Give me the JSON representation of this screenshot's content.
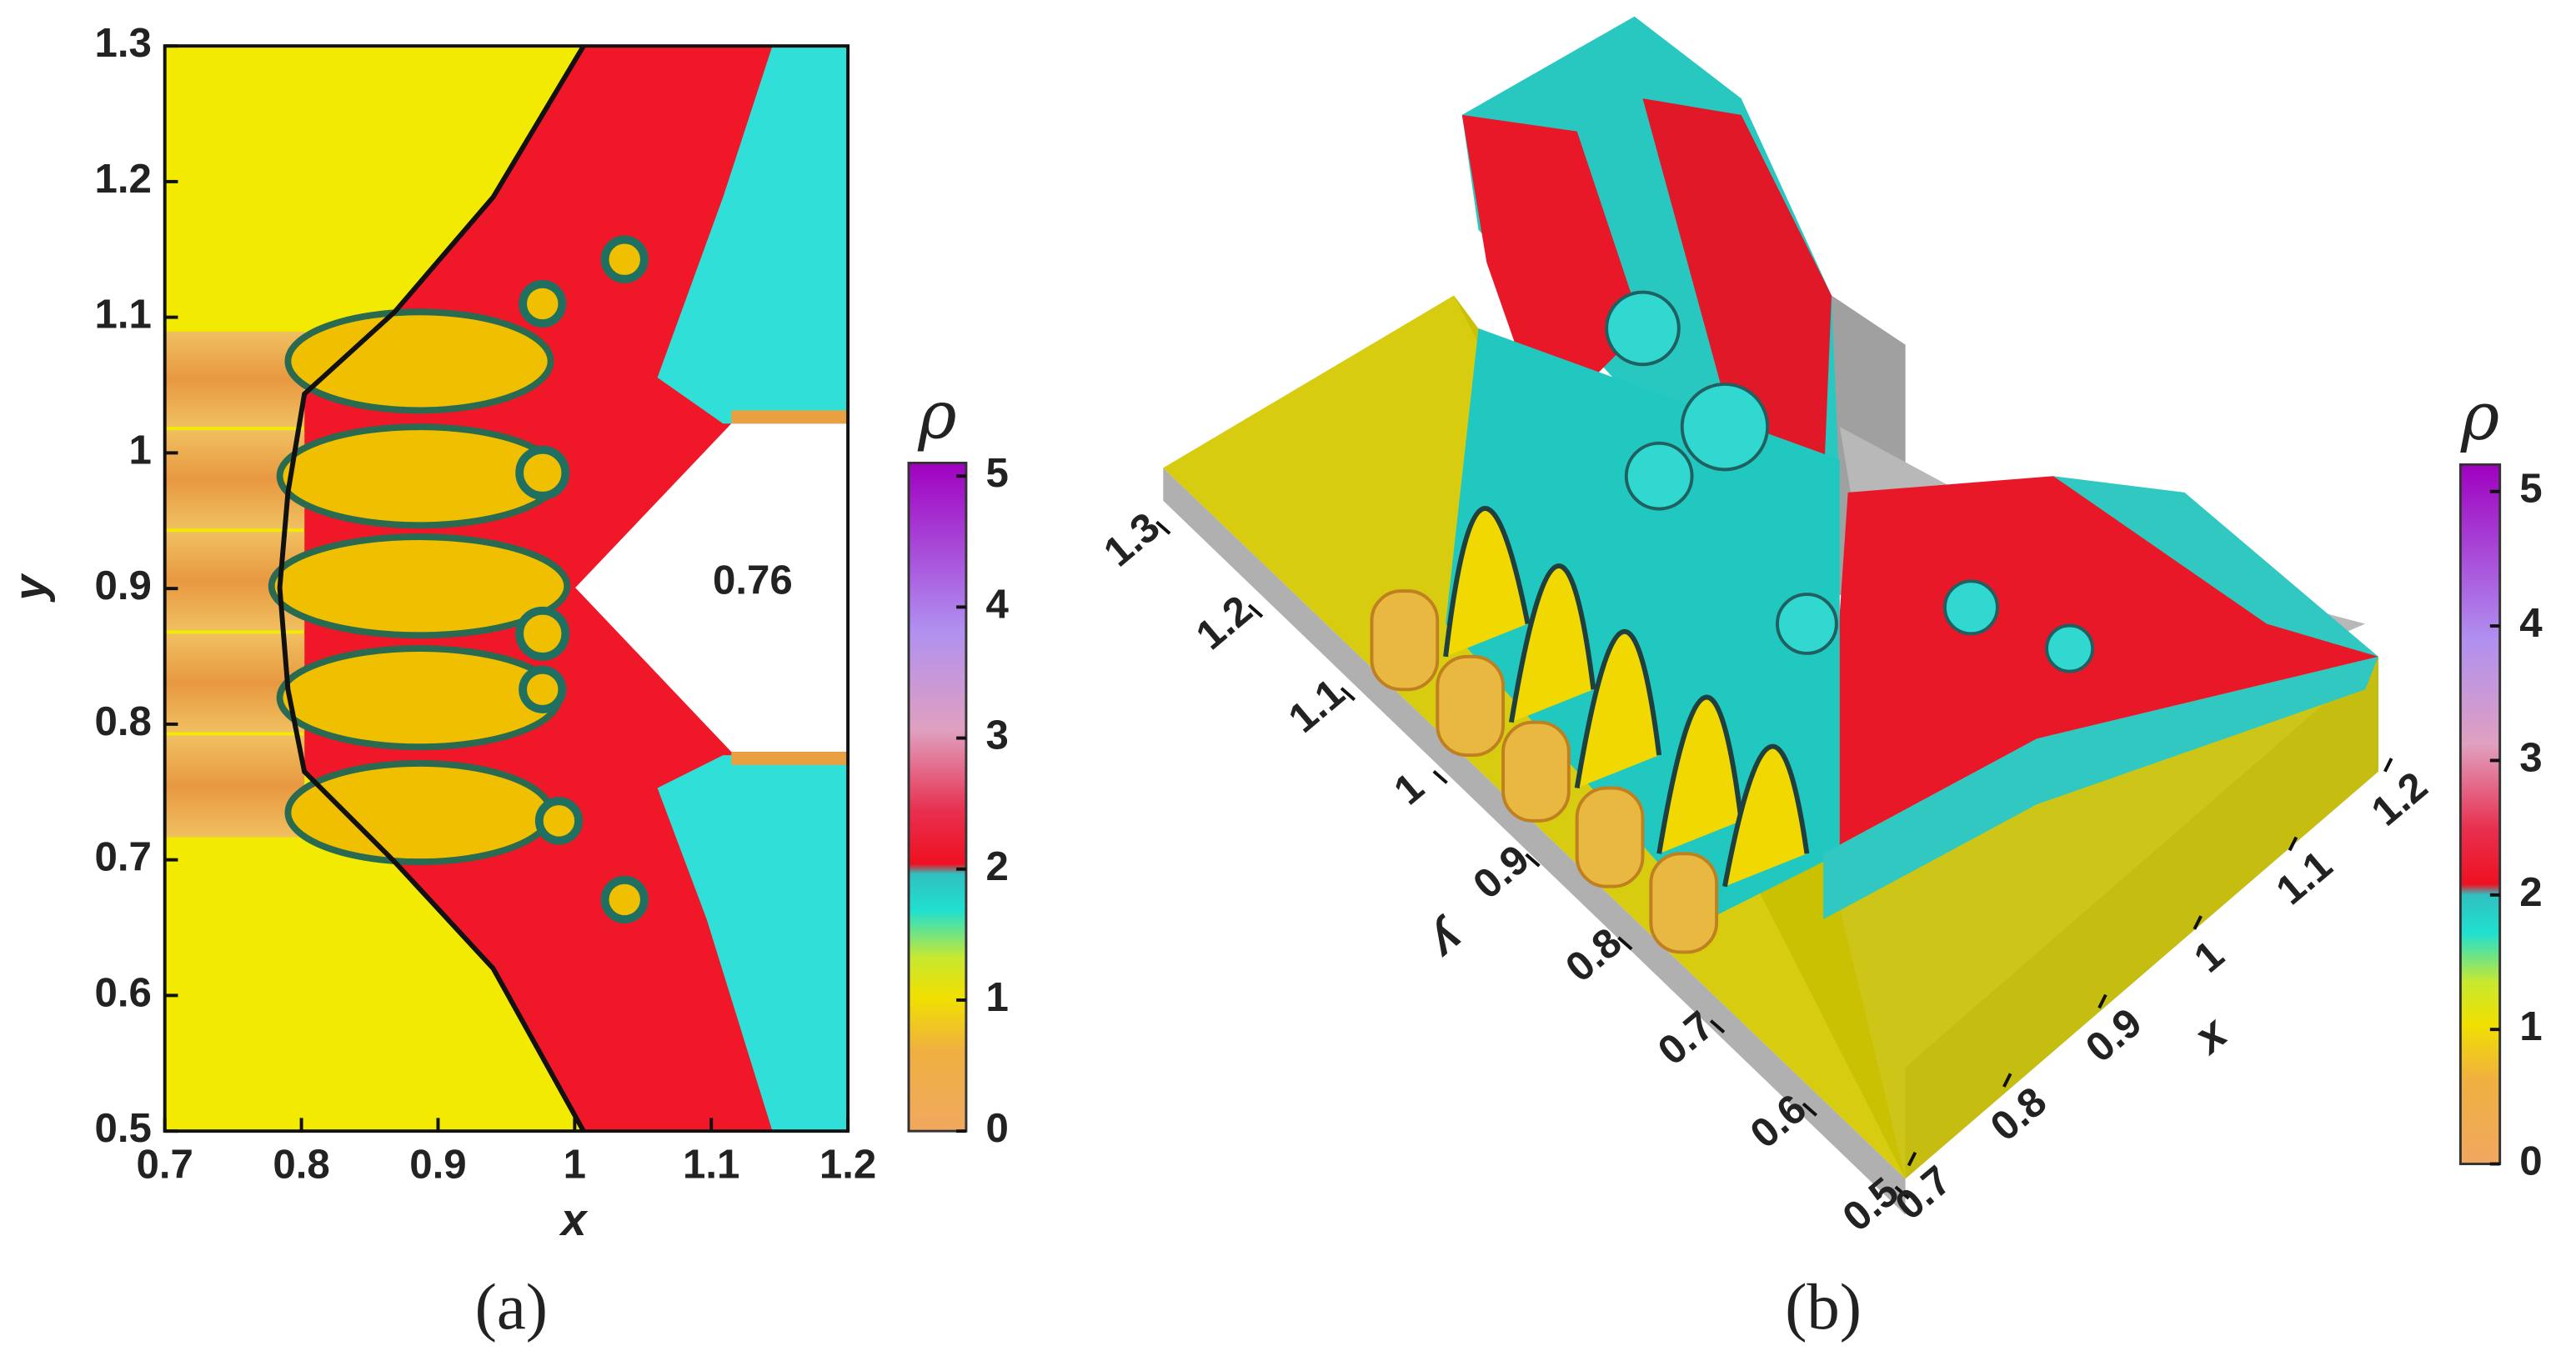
{
  "chart_data": [
    {
      "type": "contour",
      "panel_label": "(a)",
      "xlabel": "x",
      "ylabel": "y",
      "xlim": [
        0.7,
        1.2
      ],
      "ylim": [
        0.5,
        1.3
      ],
      "xticks": [
        0.7,
        0.8,
        0.9,
        1,
        1.1,
        1.2
      ],
      "yticks": [
        0.5,
        0.6,
        0.7,
        0.8,
        0.9,
        1,
        1.1,
        1.2,
        1.3
      ],
      "annotation": "0.76",
      "colorbar": {
        "label": "ρ",
        "lim": [
          0,
          5.1
        ],
        "ticks": [
          0,
          1,
          2,
          3,
          4,
          5
        ]
      }
    },
    {
      "type": "surface3d",
      "panel_label": "(b)",
      "xlabel": "x",
      "ylabel": "y",
      "xlim": [
        0.7,
        1.2
      ],
      "ylim": [
        0.5,
        1.3
      ],
      "xticks": [
        0.7,
        0.8,
        0.9,
        1,
        1.1,
        1.2
      ],
      "yticks": [
        0.5,
        0.6,
        0.7,
        0.8,
        0.9,
        1,
        1.1,
        1.2,
        1.3
      ],
      "colorbar": {
        "label": "ρ",
        "lim": [
          0,
          5.2
        ],
        "ticks": [
          0,
          1,
          2,
          3,
          4,
          5
        ]
      }
    }
  ]
}
